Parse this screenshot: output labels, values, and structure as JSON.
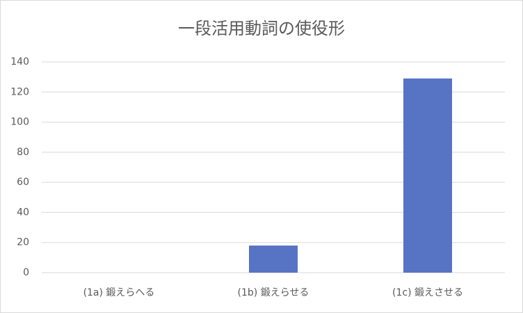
{
  "chart_data": {
    "type": "bar",
    "title": "一段活用動詞の使役形",
    "categories": [
      "(1a) 鍛えらへる",
      "(1b) 鍛えらせる",
      "(1c) 鍛えさせる"
    ],
    "values": [
      0,
      18,
      129
    ],
    "color": "#5773c4",
    "ylim": [
      0,
      140
    ],
    "yticks": [
      0,
      20,
      40,
      60,
      80,
      100,
      120,
      140
    ],
    "grid": true
  }
}
